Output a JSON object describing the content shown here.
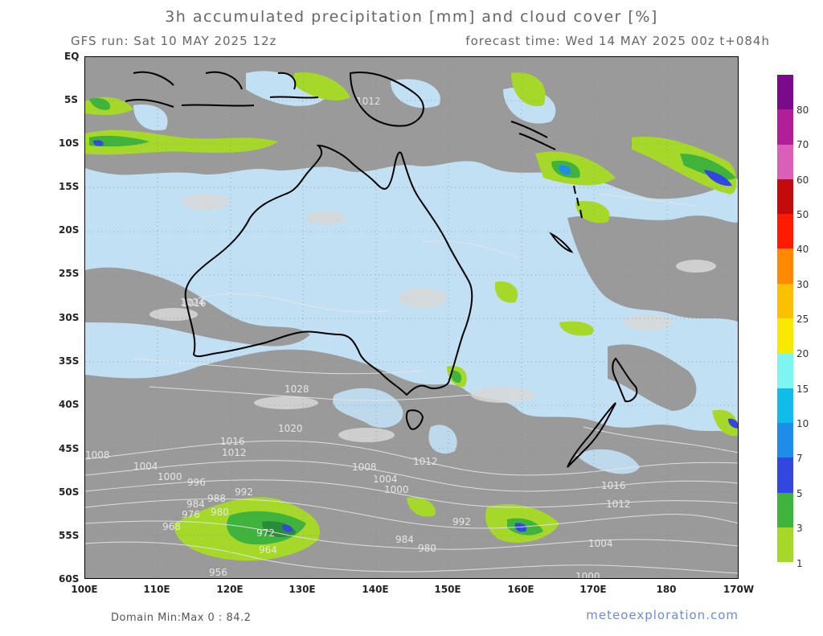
{
  "header": {
    "title": "3h accumulated precipitation [mm] and cloud cover [%]",
    "run": "GFS run: Sat 10 MAY 2025 12z",
    "forecast": "forecast time: Wed 14 MAY 2025 00z  t+084h"
  },
  "axes": {
    "lat_labels": [
      "EQ",
      "5S",
      "10S",
      "15S",
      "20S",
      "25S",
      "30S",
      "35S",
      "40S",
      "45S",
      "50S",
      "55S",
      "60S"
    ],
    "lon_labels": [
      "100E",
      "110E",
      "120E",
      "130E",
      "140E",
      "150E",
      "160E",
      "170E",
      "180",
      "170W"
    ]
  },
  "colorbar": {
    "levels": [
      "1",
      "3",
      "5",
      "7",
      "10",
      "15",
      "20",
      "25",
      "30",
      "40",
      "50",
      "60",
      "70",
      "80"
    ],
    "colors": [
      "#a6d82a",
      "#3fb33c",
      "#2a8c3a",
      "#3347e0",
      "#1f8ce8",
      "#10bde8",
      "#7ff5f2",
      "#fbe800",
      "#fbc100",
      "#ff8a00",
      "#ff1a00",
      "#c40a0a",
      "#d860b8",
      "#b01e9a",
      "#7a0a8c"
    ]
  },
  "isobars": [
    "1012",
    "1016",
    "1024",
    "1028",
    "1020",
    "1016",
    "1012",
    "1008",
    "1004",
    "1000",
    "996",
    "992",
    "988",
    "984",
    "980",
    "976",
    "972",
    "968",
    "964",
    "956",
    "992",
    "984",
    "980",
    "1000",
    "1004",
    "1008",
    "1012",
    "1016",
    "1012",
    "1004",
    "1000"
  ],
  "footer": {
    "domain": "Domain Min:Max 0 : 84.2",
    "site": "meteoexploration.com"
  },
  "colors": {
    "ocean_clear": "#c2e0f4",
    "cloud": "#9a9a9a",
    "cloud_light": "#d8d8d8",
    "coast": "#000000",
    "isobar": "#e6e6e6"
  }
}
